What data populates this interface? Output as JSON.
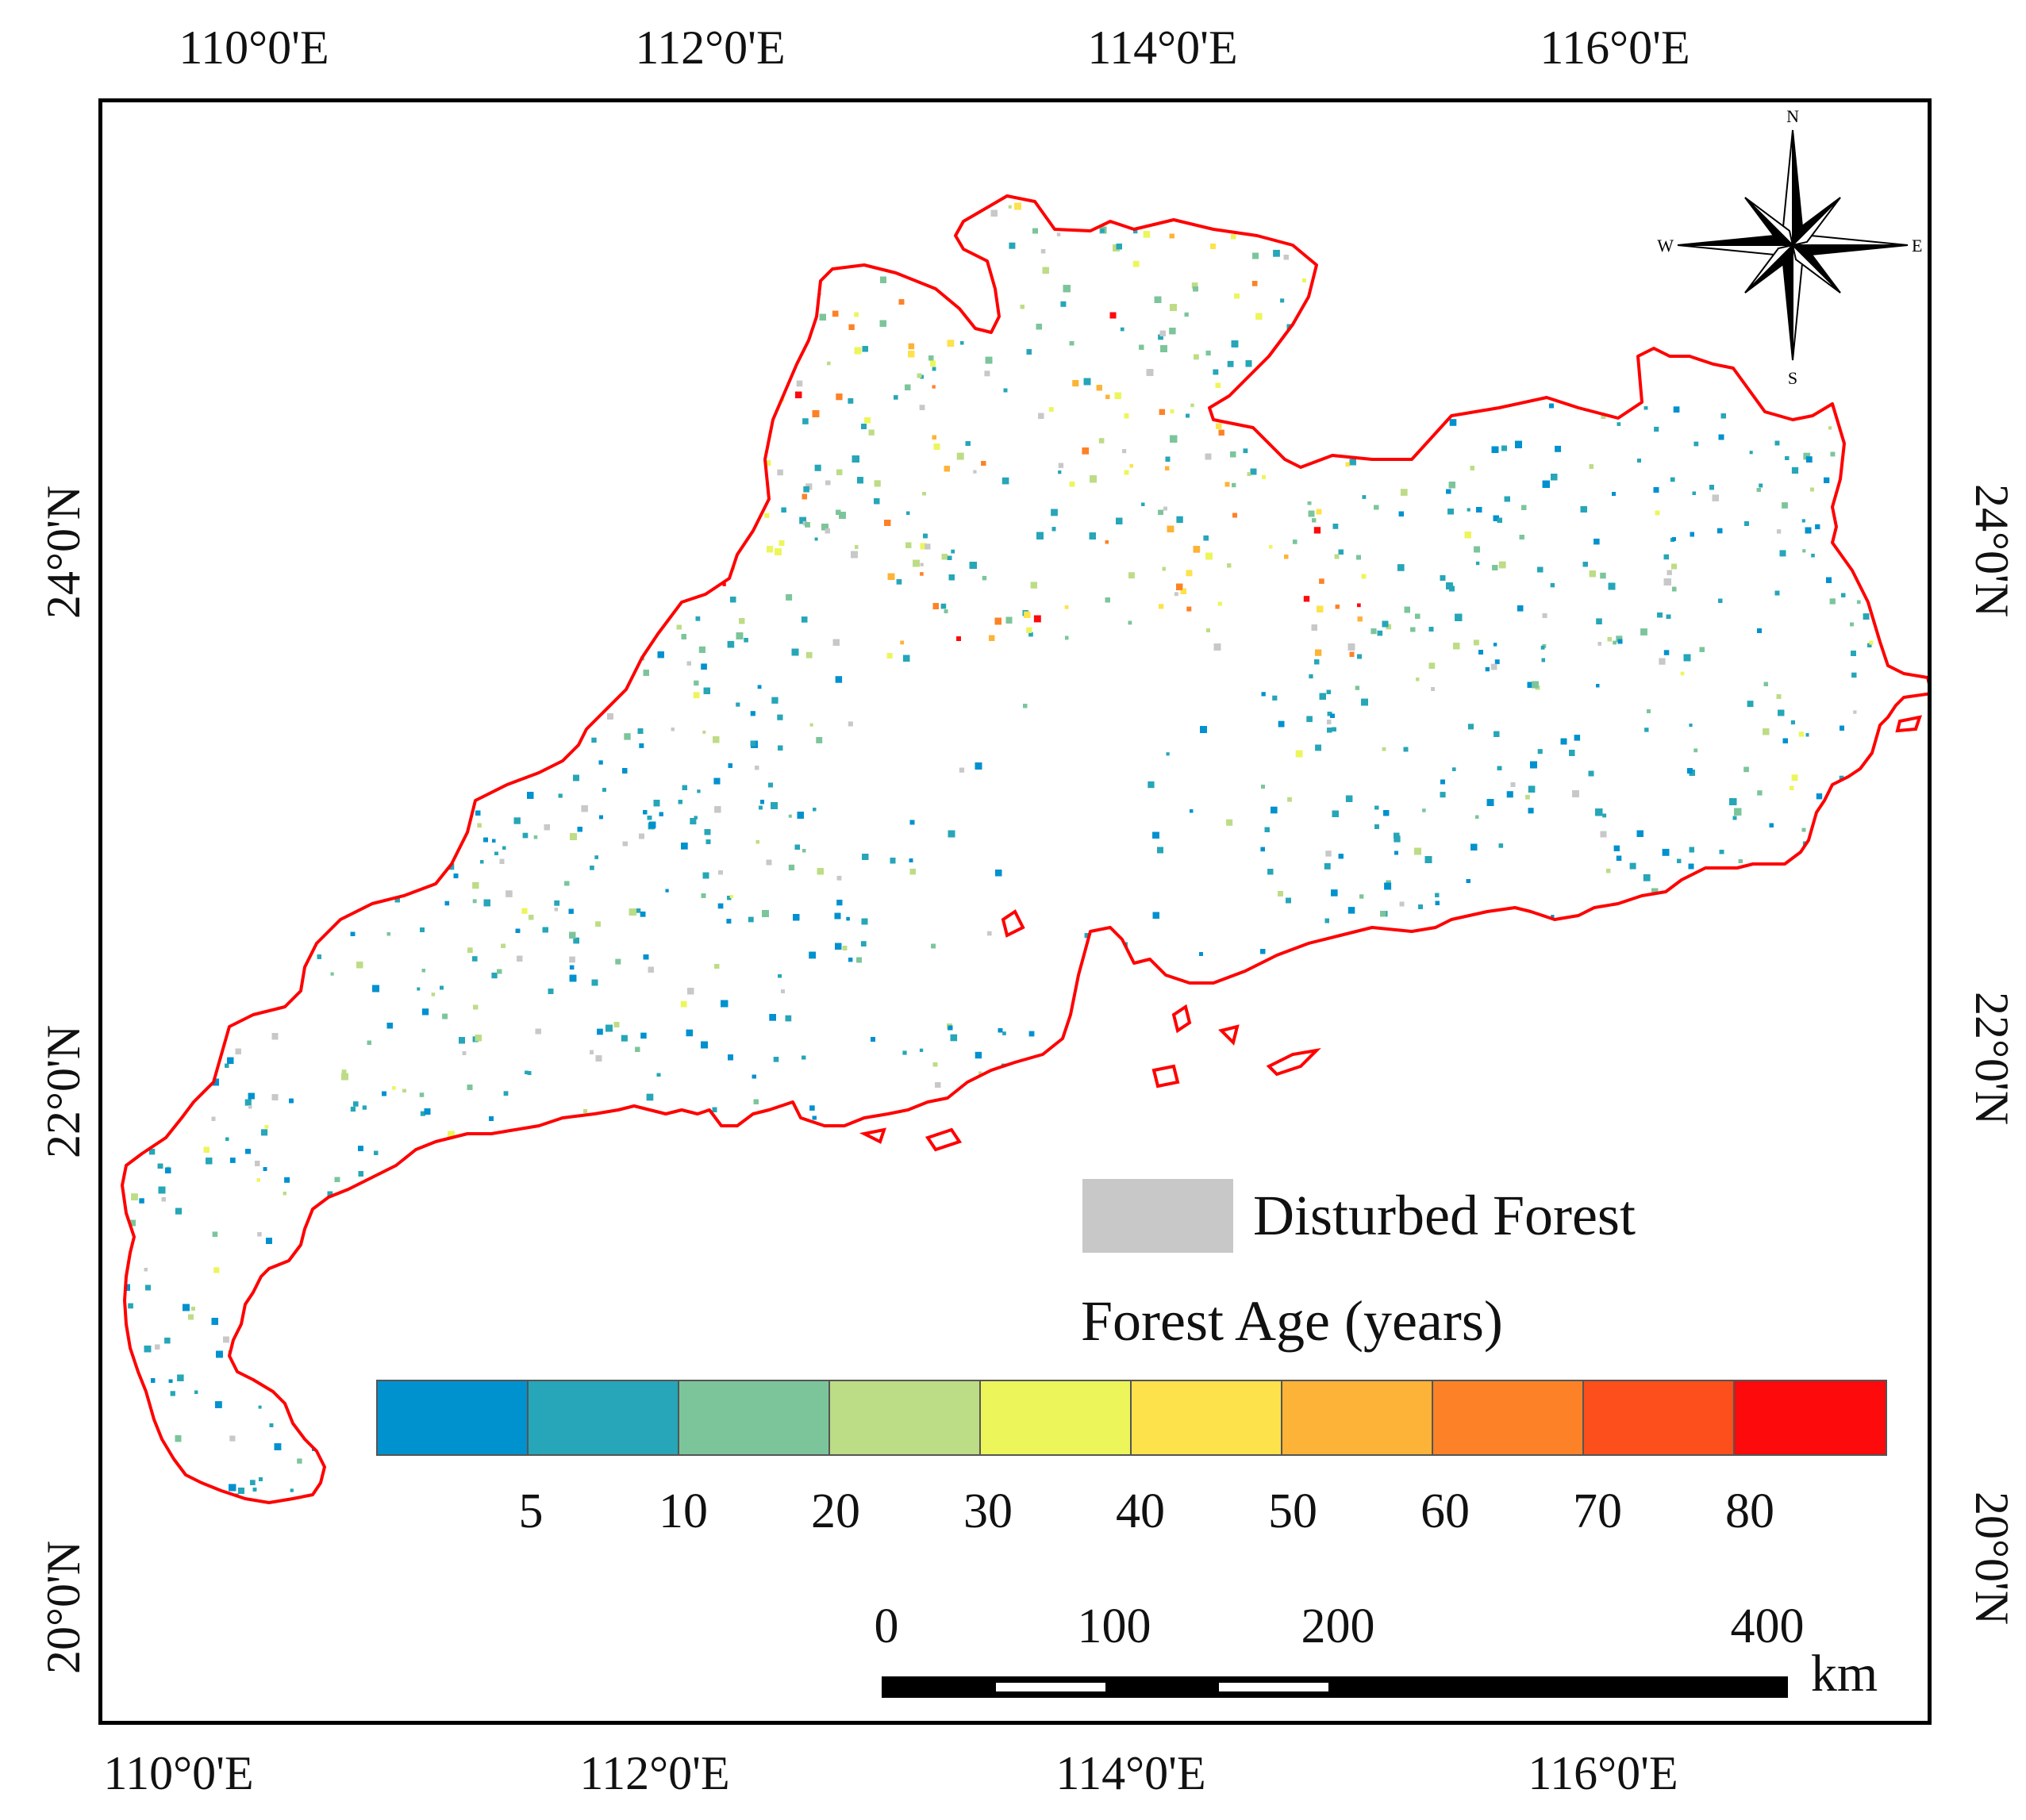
{
  "axes": {
    "top_longitudes": [
      "110°0'E",
      "112°0'E",
      "114°0'E",
      "116°0'E"
    ],
    "bottom_longitudes": [
      "110°0'E",
      "112°0'E",
      "114°0'E",
      "116°0'E"
    ],
    "left_latitudes": [
      "24°0'N",
      "22°0'N",
      "20°0'N"
    ],
    "right_latitudes": [
      "24°0'N",
      "22°0'N",
      "20°0'N"
    ]
  },
  "compass": {
    "n": "N",
    "s": "S",
    "e": "E",
    "w": "W"
  },
  "legend": {
    "disturbed_label": "Disturbed Forest",
    "disturbed_color": "#c8c8c8",
    "age_title": "Forest Age (years)",
    "age_ticks": [
      "5",
      "10",
      "20",
      "30",
      "40",
      "50",
      "60",
      "70",
      "80"
    ],
    "age_colors": [
      "#0091cf",
      "#26a6b8",
      "#7cc59b",
      "#bddc86",
      "#ecf65a",
      "#fde24b",
      "#fdb337",
      "#fd8227",
      "#fd4f1b",
      "#fd0a0c"
    ]
  },
  "scale": {
    "labels": [
      "0",
      "100",
      "200",
      "400"
    ],
    "unit": "km"
  },
  "colors": {
    "boundary": "#ff0000"
  }
}
